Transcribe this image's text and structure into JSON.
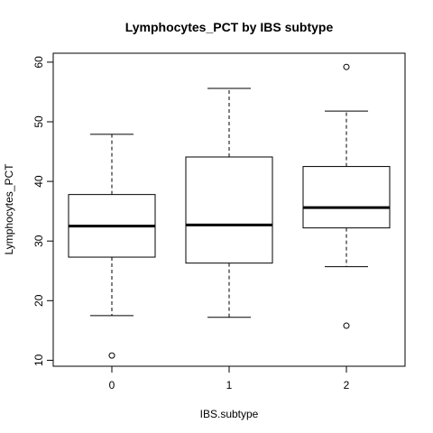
{
  "chart_data": {
    "type": "boxplot",
    "title": "Lymphocytes_PCT by IBS subtype",
    "xlabel": "IBS.subtype",
    "ylabel": "Lymphocytes_PCT",
    "categories": [
      "0",
      "1",
      "2"
    ],
    "ylim": [
      9,
      61.5
    ],
    "yticks": [
      10,
      20,
      30,
      40,
      50,
      60
    ],
    "grid": false,
    "legend": "none",
    "boxes": [
      {
        "category": "0",
        "whisker_low": 17.5,
        "q1": 27.3,
        "median": 32.5,
        "q3": 37.8,
        "whisker_high": 47.9,
        "outliers": [
          10.8
        ]
      },
      {
        "category": "1",
        "whisker_low": 17.2,
        "q1": 26.3,
        "median": 32.7,
        "q3": 44.1,
        "whisker_high": 55.6,
        "outliers": []
      },
      {
        "category": "2",
        "whisker_low": 25.7,
        "q1": 32.2,
        "median": 35.6,
        "q3": 42.5,
        "whisker_high": 51.8,
        "outliers": [
          59.2,
          15.8
        ]
      }
    ]
  }
}
